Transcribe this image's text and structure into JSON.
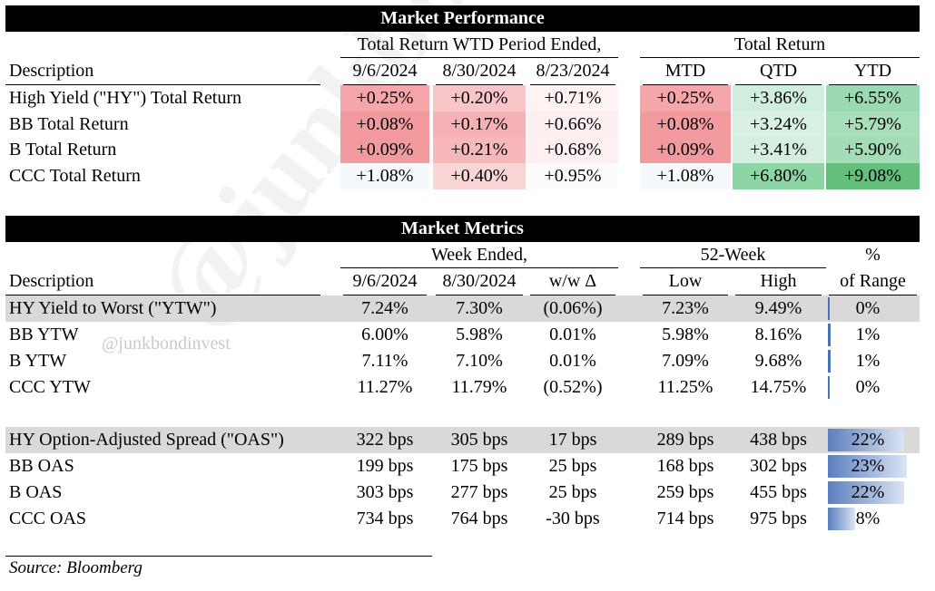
{
  "watermark": "@junkbondinvest",
  "perf": {
    "title": "Market Performance",
    "group1": "Total Return WTD Period Ended,",
    "group2": "Total Return",
    "desc_header": "Description",
    "cols": [
      "9/6/2024",
      "8/30/2024",
      "8/23/2024",
      "MTD",
      "QTD",
      "YTD"
    ],
    "rows": [
      {
        "label": "High Yield (\"HY\") Total Return",
        "vals": [
          "+0.25%",
          "+0.20%",
          "+0.71%",
          "+0.25%",
          "+3.86%",
          "+6.55%"
        ],
        "colors": [
          "#f4a6a8",
          "#f8c6c8",
          "#fef2f3",
          "#f4a6a8",
          "#cfeedd",
          "#9bd9b2"
        ]
      },
      {
        "label": "BB Total Return",
        "vals": [
          "+0.08%",
          "+0.17%",
          "+0.66%",
          "+0.08%",
          "+3.24%",
          "+5.79%"
        ],
        "colors": [
          "#f29a9d",
          "#f5b1b4",
          "#fdeff0",
          "#f29a9d",
          "#d9f1e3",
          "#a9deba"
        ]
      },
      {
        "label": "B Total Return",
        "vals": [
          "+0.09%",
          "+0.21%",
          "+0.68%",
          "+0.09%",
          "+3.41%",
          "+5.90%"
        ],
        "colors": [
          "#f29b9e",
          "#f6b8ba",
          "#fef0f1",
          "#f29b9e",
          "#d4efdf",
          "#a3dcb6"
        ]
      },
      {
        "label": "CCC Total Return",
        "vals": [
          "+1.08%",
          "+0.40%",
          "+0.95%",
          "+1.08%",
          "+6.80%",
          "+9.08%"
        ],
        "colors": [
          "#f5f9fb",
          "#fad5d6",
          "#fcfcfc",
          "#f5f9fb",
          "#8ed5a6",
          "#63bf7b"
        ]
      }
    ]
  },
  "metrics": {
    "title": "Market Metrics",
    "group1": "Week Ended,",
    "group2": "52-Week",
    "pct_top": "%",
    "desc_header": "Description",
    "cols": [
      "9/6/2024",
      "8/30/2024",
      "w/w Δ",
      "Low",
      "High",
      "of Range"
    ],
    "ytw_rows": [
      {
        "label": "HY Yield to Worst (\"YTW\")",
        "vals": [
          "7.24%",
          "7.30%",
          "(0.06%)",
          "7.23%",
          "9.49%"
        ],
        "pct": "0%",
        "range_fraction": 0.0,
        "shaded": true
      },
      {
        "label": "BB YTW",
        "vals": [
          "6.00%",
          "5.98%",
          "0.01%",
          "5.98%",
          "8.16%"
        ],
        "pct": "1%",
        "range_fraction": 0.01,
        "shaded": false
      },
      {
        "label": "B YTW",
        "vals": [
          "7.11%",
          "7.10%",
          "0.01%",
          "7.09%",
          "9.68%"
        ],
        "pct": "1%",
        "range_fraction": 0.01,
        "shaded": false
      },
      {
        "label": "CCC YTW",
        "vals": [
          "11.27%",
          "11.79%",
          "(0.52%)",
          "11.25%",
          "14.75%"
        ],
        "pct": "0%",
        "range_fraction": 0.0,
        "shaded": false
      }
    ],
    "oas_rows": [
      {
        "label": "HY Option-Adjusted Spread (\"OAS\")",
        "vals": [
          "322 bps",
          "305 bps",
          "17 bps",
          "289 bps",
          "438 bps"
        ],
        "pct": "22%",
        "range_fraction": 0.22,
        "shaded": true
      },
      {
        "label": "BB OAS",
        "vals": [
          "199 bps",
          "175 bps",
          "25 bps",
          "168 bps",
          "302 bps"
        ],
        "pct": "23%",
        "range_fraction": 0.23,
        "shaded": false
      },
      {
        "label": "B OAS",
        "vals": [
          "303 bps",
          "277 bps",
          "25 bps",
          "259 bps",
          "455 bps"
        ],
        "pct": "22%",
        "range_fraction": 0.22,
        "shaded": false
      },
      {
        "label": "CCC OAS",
        "vals": [
          "734 bps",
          "764 bps",
          "-30 bps",
          "714 bps",
          "975 bps"
        ],
        "pct": "8%",
        "range_fraction": 0.08,
        "shaded": false
      }
    ]
  },
  "source": "Source: Bloomberg"
}
